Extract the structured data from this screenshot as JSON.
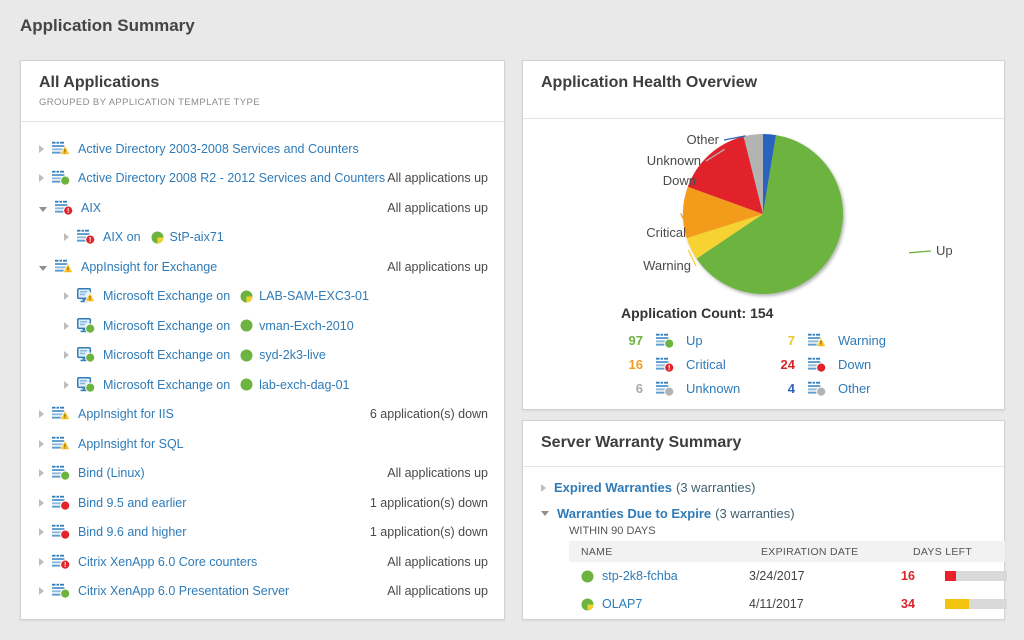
{
  "page": {
    "title": "Application Summary"
  },
  "all_applications": {
    "title": "All Applications",
    "subtitle": "GROUPED BY APPLICATION TEMPLATE TYPE",
    "rows": [
      {
        "level": 0,
        "expand": "collapsed",
        "icon": "app",
        "badge": "warning",
        "label": "Active Directory 2003-2008 Services and Counters",
        "status": ""
      },
      {
        "level": 0,
        "expand": "collapsed",
        "icon": "app",
        "badge": "up",
        "label": "Active Directory 2008 R2 - 2012 Services and Counters",
        "status": "All applications up"
      },
      {
        "level": 0,
        "expand": "expanded",
        "icon": "app",
        "badge": "critical",
        "label": "AIX",
        "status": "All applications up"
      },
      {
        "level": 1,
        "expand": "collapsed",
        "icon": "app",
        "badge": "critical",
        "label": "AIX on",
        "node": {
          "name": "StP-aix71",
          "state": "up-warning"
        },
        "status": ""
      },
      {
        "level": 0,
        "expand": "expanded",
        "icon": "app",
        "badge": "warning",
        "label": "AppInsight for Exchange",
        "status": "All applications up"
      },
      {
        "level": 1,
        "expand": "collapsed",
        "icon": "monitor",
        "badge": "warning",
        "label": "Microsoft Exchange on",
        "node": {
          "name": "LAB-SAM-EXC3-01",
          "state": "up-warning"
        },
        "status": ""
      },
      {
        "level": 1,
        "expand": "collapsed",
        "icon": "monitor",
        "badge": "up",
        "label": "Microsoft Exchange on",
        "node": {
          "name": "vman-Exch-2010",
          "state": "up"
        },
        "status": ""
      },
      {
        "level": 1,
        "expand": "collapsed",
        "icon": "monitor",
        "badge": "up",
        "label": "Microsoft Exchange on",
        "node": {
          "name": "syd-2k3-live",
          "state": "up"
        },
        "status": ""
      },
      {
        "level": 1,
        "expand": "collapsed",
        "icon": "monitor",
        "badge": "up",
        "label": "Microsoft Exchange on",
        "node": {
          "name": "lab-exch-dag-01",
          "state": "up"
        },
        "status": ""
      },
      {
        "level": 0,
        "expand": "collapsed",
        "icon": "app",
        "badge": "warning",
        "label": "AppInsight for IIS",
        "status": "6 application(s) down"
      },
      {
        "level": 0,
        "expand": "collapsed",
        "icon": "app",
        "badge": "warning",
        "label": "AppInsight for SQL",
        "status": ""
      },
      {
        "level": 0,
        "expand": "collapsed",
        "icon": "app",
        "badge": "up",
        "label": "Bind (Linux)",
        "status": "All applications up"
      },
      {
        "level": 0,
        "expand": "collapsed",
        "icon": "app",
        "badge": "down",
        "label": "Bind 9.5 and earlier",
        "status": "1 application(s) down"
      },
      {
        "level": 0,
        "expand": "collapsed",
        "icon": "app",
        "badge": "down",
        "label": "Bind 9.6 and higher",
        "status": "1 application(s) down"
      },
      {
        "level": 0,
        "expand": "collapsed",
        "icon": "app",
        "badge": "critical",
        "label": "Citrix XenApp 6.0 Core counters",
        "status": "All applications up"
      },
      {
        "level": 0,
        "expand": "collapsed",
        "icon": "app",
        "badge": "up",
        "label": "Citrix XenApp 6.0 Presentation Server",
        "status": "All applications up"
      }
    ]
  },
  "chart_data": {
    "type": "pie",
    "title": "Application Health Overview",
    "total": 154,
    "start_angle": -90,
    "direction": "clockwise",
    "legend_position": "below",
    "slices": [
      {
        "label": "Other",
        "value": 4,
        "color": "#2c64be"
      },
      {
        "label": "Up",
        "value": 97,
        "color": "#6db33f"
      },
      {
        "label": "Warning",
        "value": 7,
        "color": "#f6d231"
      },
      {
        "label": "Critical",
        "value": 16,
        "color": "#f39c1f"
      },
      {
        "label": "Down",
        "value": 24,
        "color": "#e1242a"
      },
      {
        "label": "Unknown",
        "value": 6,
        "color": "#b3b3b3"
      }
    ]
  },
  "health": {
    "title": "Application Health Overview",
    "count_label": "Application Count:",
    "count_value": "154",
    "legend": [
      {
        "count": "97",
        "label": "Up",
        "state": "up",
        "count_color": "#6db33f"
      },
      {
        "count": "7",
        "label": "Warning",
        "state": "warning",
        "count_color": "#f0c62b"
      },
      {
        "count": "16",
        "label": "Critical",
        "state": "critical",
        "count_color": "#f39c1f"
      },
      {
        "count": "24",
        "label": "Down",
        "state": "down",
        "count_color": "#d8232a"
      },
      {
        "count": "6",
        "label": "Unknown",
        "state": "unknown",
        "count_color": "#a9a9a9"
      },
      {
        "count": "4",
        "label": "Other",
        "state": "other",
        "count_color": "#2c64be"
      }
    ]
  },
  "warranty": {
    "title": "Server Warranty Summary",
    "groups": [
      {
        "expanded": false,
        "label": "Expired Warranties",
        "suffix": "(3 warranties)"
      },
      {
        "expanded": true,
        "label": "Warranties Due to Expire",
        "suffix": "(3 warranties)",
        "scope": "WITHIN 90 DAYS"
      }
    ],
    "table": {
      "columns": [
        "NAME",
        "EXPIRATION DATE",
        "DAYS LEFT"
      ],
      "rows": [
        {
          "name": "stp-2k8-fchba",
          "state": "up",
          "expiration": "3/24/2017",
          "days_left": "16",
          "bar_color": "#e8212b",
          "bar_pct": 18
        },
        {
          "name": "OLAP7",
          "state": "up-warning",
          "expiration": "4/11/2017",
          "days_left": "34",
          "bar_color": "#f2c40f",
          "bar_pct": 38
        }
      ]
    }
  }
}
